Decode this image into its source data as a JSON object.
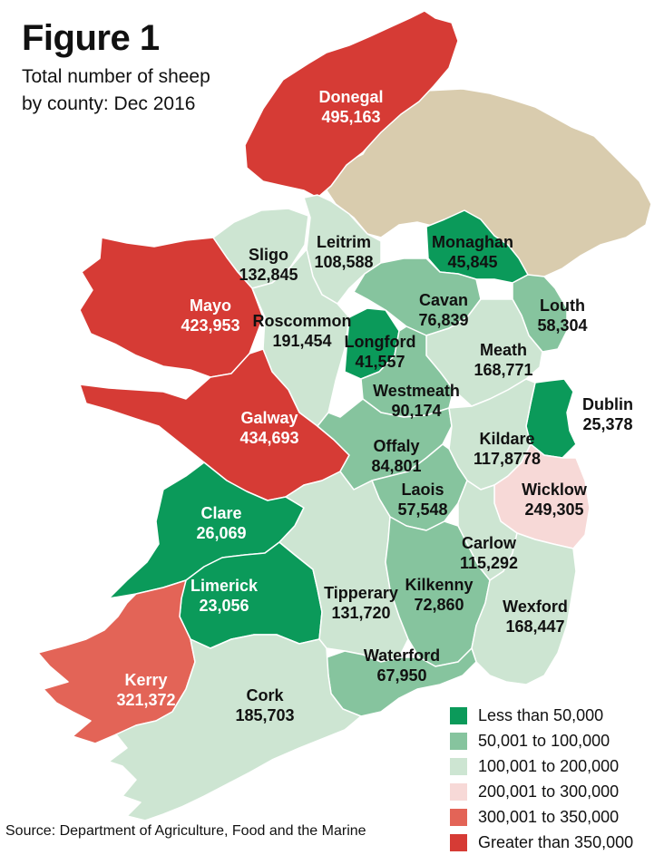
{
  "figure": {
    "title": "Figure 1",
    "subtitle_line1": "Total number of sheep",
    "subtitle_line2": "by county: Dec 2016"
  },
  "source": "Source: Department of Agriculture, Food and the Marine",
  "colors": {
    "northern_ireland": "#d9ccae",
    "border_line": "#ffffff",
    "less_than_50000": "#0b9a5a",
    "50001_to_100000": "#86c49e",
    "100001_to_200000": "#cde5d2",
    "200001_to_300000": "#f7d9d7",
    "300001_to_350000": "#e36457",
    "greater_than_350000": "#d63b35"
  },
  "legend": [
    {
      "label": "Less than 50,000",
      "color": "#0b9a5a"
    },
    {
      "label": "50,001 to 100,000",
      "color": "#86c49e"
    },
    {
      "label": "100,001 to 200,000",
      "color": "#cde5d2"
    },
    {
      "label": "200,001 to 300,000",
      "color": "#f7d9d7"
    },
    {
      "label": "300,001 to 350,000",
      "color": "#e36457"
    },
    {
      "label": "Greater than 350,000",
      "color": "#d63b35"
    }
  ],
  "counties": [
    {
      "name": "Donegal",
      "value": "495,163",
      "band": "greater_than_350000"
    },
    {
      "name": "Sligo",
      "value": "132,845",
      "band": "100001_to_200000"
    },
    {
      "name": "Leitrim",
      "value": "108,588",
      "band": "100001_to_200000"
    },
    {
      "name": "Monaghan",
      "value": "45,845",
      "band": "less_than_50000"
    },
    {
      "name": "Mayo",
      "value": "423,953",
      "band": "greater_than_350000"
    },
    {
      "name": "Cavan",
      "value": "76,839",
      "band": "50001_to_100000"
    },
    {
      "name": "Louth",
      "value": "58,304",
      "band": "50001_to_100000"
    },
    {
      "name": "Roscommon",
      "value": "191,454",
      "band": "100001_to_200000"
    },
    {
      "name": "Longford",
      "value": "41,557",
      "band": "less_than_50000"
    },
    {
      "name": "Meath",
      "value": "168,771",
      "band": "100001_to_200000"
    },
    {
      "name": "Westmeath",
      "value": "90,174",
      "band": "50001_to_100000"
    },
    {
      "name": "Dublin",
      "value": "25,378",
      "band": "less_than_50000"
    },
    {
      "name": "Galway",
      "value": "434,693",
      "band": "greater_than_350000"
    },
    {
      "name": "Offaly",
      "value": "84,801",
      "band": "50001_to_100000"
    },
    {
      "name": "Kildare",
      "value": "117,8778",
      "band": "100001_to_200000"
    },
    {
      "name": "Laois",
      "value": "57,548",
      "band": "50001_to_100000"
    },
    {
      "name": "Wicklow",
      "value": "249,305",
      "band": "200001_to_300000"
    },
    {
      "name": "Clare",
      "value": "26,069",
      "band": "less_than_50000"
    },
    {
      "name": "Carlow",
      "value": "115,292",
      "band": "100001_to_200000"
    },
    {
      "name": "Limerick",
      "value": "23,056",
      "band": "less_than_50000"
    },
    {
      "name": "Tipperary",
      "value": "131,720",
      "band": "100001_to_200000"
    },
    {
      "name": "Kilkenny",
      "value": "72,860",
      "band": "50001_to_100000"
    },
    {
      "name": "Wexford",
      "value": "168,447",
      "band": "100001_to_200000"
    },
    {
      "name": "Waterford",
      "value": "67,950",
      "band": "50001_to_100000"
    },
    {
      "name": "Kerry",
      "value": "321,372",
      "band": "300001_to_350000"
    },
    {
      "name": "Cork",
      "value": "185,703",
      "band": "100001_to_200000"
    }
  ]
}
